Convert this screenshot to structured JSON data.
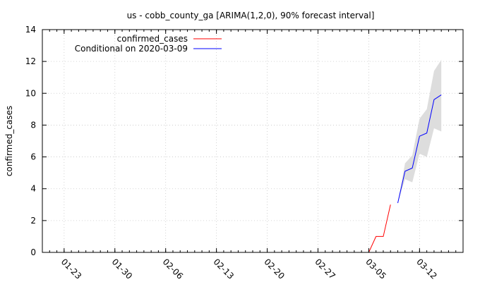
{
  "chart_data": {
    "type": "line",
    "title": "us - cobb_county_ga [ARIMA(1,2,0), 90% forecast interval]",
    "xlabel": "",
    "ylabel": "confirmed_cases",
    "ylim": [
      0,
      14
    ],
    "yticks": [
      0,
      2,
      4,
      6,
      8,
      10,
      12,
      14
    ],
    "xlim": [
      "2020-01-20",
      "2020-03-18"
    ],
    "xticks": [
      "2020-01-23",
      "2020-01-30",
      "2020-02-06",
      "2020-02-13",
      "2020-02-20",
      "2020-02-27",
      "2020-03-05",
      "2020-03-12"
    ],
    "xtick_labels": [
      "01-23",
      "01-30",
      "02-06",
      "02-13",
      "02-20",
      "02-27",
      "03-05",
      "03-12"
    ],
    "grid": true,
    "legend_position": "top-left",
    "series": [
      {
        "name": "confirmed_cases",
        "color": "#ff0000",
        "points": [
          {
            "x": "2020-03-04",
            "y": 0
          },
          {
            "x": "2020-03-05",
            "y": 0
          },
          {
            "x": "2020-03-06",
            "y": 1
          },
          {
            "x": "2020-03-07",
            "y": 1
          },
          {
            "x": "2020-03-08",
            "y": 3
          }
        ]
      },
      {
        "name": "Conditional on 2020-03-09",
        "color": "#0000ff",
        "points": [
          {
            "x": "2020-03-09",
            "y": 3.1
          },
          {
            "x": "2020-03-10",
            "y": 5.1
          },
          {
            "x": "2020-03-11",
            "y": 5.3
          },
          {
            "x": "2020-03-12",
            "y": 7.3
          },
          {
            "x": "2020-03-13",
            "y": 7.5
          },
          {
            "x": "2020-03-14",
            "y": 9.6
          },
          {
            "x": "2020-03-15",
            "y": 9.9
          }
        ]
      }
    ],
    "interval": {
      "name": "90% forecast interval",
      "color": "#dddddd",
      "points": [
        {
          "x": "2020-03-09",
          "low": 3.1,
          "high": 3.1
        },
        {
          "x": "2020-03-10",
          "low": 4.6,
          "high": 5.6
        },
        {
          "x": "2020-03-11",
          "low": 4.4,
          "high": 6.1
        },
        {
          "x": "2020-03-12",
          "low": 6.2,
          "high": 8.4
        },
        {
          "x": "2020-03-13",
          "low": 6.0,
          "high": 9.0
        },
        {
          "x": "2020-03-14",
          "low": 7.8,
          "high": 11.4
        },
        {
          "x": "2020-03-15",
          "low": 7.6,
          "high": 12.1
        }
      ]
    }
  }
}
